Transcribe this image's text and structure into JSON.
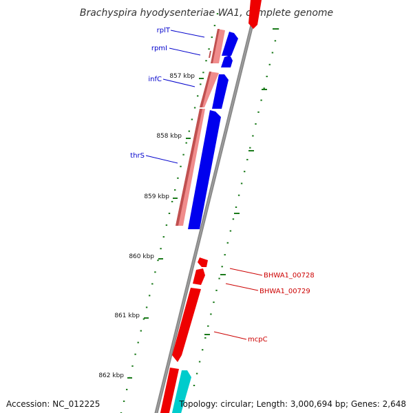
{
  "title": "Brachyspira hyodysenteriae WA1, complete genome",
  "accession": "Accession: NC_012225",
  "topology": "Topology: circular; Length: 3,000,694 bp; Genes: 2,648",
  "colors": {
    "backbone": "#888888",
    "tick": "#1a7a1a",
    "forward_cds": "#0000ee",
    "reverse_cds_light": "#f08c8c",
    "red_cds": "#ee0000",
    "cyan_cds": "#00cccc",
    "label_blue": "#0000cc",
    "label_red": "#cc0000"
  },
  "ticks": [
    "857 kbp",
    "858 kbp",
    "859 kbp",
    "860 kbp",
    "861 kbp",
    "862 kbp"
  ],
  "gene_labels_left": [
    {
      "name": "rplT"
    },
    {
      "name": "rpmI"
    },
    {
      "name": "infC"
    },
    {
      "name": "thrS"
    }
  ],
  "gene_labels_right": [
    {
      "name": "BHWA1_00728"
    },
    {
      "name": "BHWA1_00729"
    },
    {
      "name": "mcpC"
    }
  ]
}
